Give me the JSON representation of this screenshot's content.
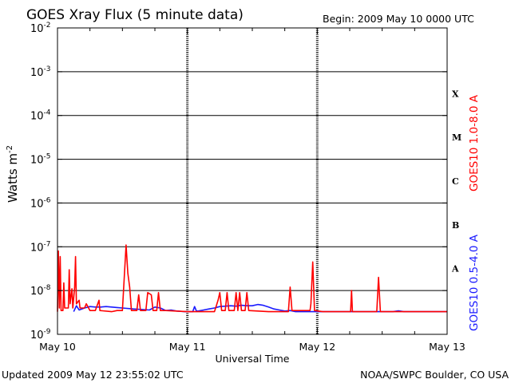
{
  "title": "GOES Xray Flux (5 minute data)",
  "begin_label": "Begin:  2009 May 10 0000 UTC",
  "footer_left": "Updated 2009 May 12 23:55:02 UTC",
  "footer_right": "NOAA/SWPC Boulder, CO USA",
  "colors": {
    "long_channel": "#ff0000",
    "short_channel": "#1a1aff",
    "axis": "#000000"
  },
  "chart_data": {
    "type": "line",
    "title": "GOES Xray Flux (5 minute data)",
    "xlabel": "Universal Time",
    "ylabel": "Watts m",
    "ylabel_superscript": "-2",
    "y_scale": "log",
    "ylim": [
      1e-09,
      0.01
    ],
    "xlim": [
      "2009-05-10 00:00",
      "2009-05-13 00:00"
    ],
    "y_ticks": [
      {
        "value": 0.01,
        "base": "10",
        "exp": "-2"
      },
      {
        "value": 0.001,
        "base": "10",
        "exp": "-3"
      },
      {
        "value": 0.0001,
        "base": "10",
        "exp": "-4"
      },
      {
        "value": 1e-05,
        "base": "10",
        "exp": "-5"
      },
      {
        "value": 1e-06,
        "base": "10",
        "exp": "-6"
      },
      {
        "value": 1e-07,
        "base": "10",
        "exp": "-7"
      },
      {
        "value": 1e-08,
        "base": "10",
        "exp": "-8"
      },
      {
        "value": 1e-09,
        "base": "10",
        "exp": "-9"
      }
    ],
    "x_ticks": [
      {
        "label": "May 10",
        "x": "2009-05-10 00:00"
      },
      {
        "label": "May 11",
        "x": "2009-05-11 00:00"
      },
      {
        "label": "May 12",
        "x": "2009-05-12 00:00"
      },
      {
        "label": "May 13",
        "x": "2009-05-13 00:00"
      }
    ],
    "horizontal_grid": [
      0.001,
      0.0001,
      1e-05,
      1e-06,
      1e-07,
      1e-08
    ],
    "flare_classes": [
      {
        "label": "X",
        "low": 0.0001,
        "high": 0.001
      },
      {
        "label": "M",
        "low": 1e-05,
        "high": 0.0001
      },
      {
        "label": "C",
        "low": 1e-06,
        "high": 1e-05
      },
      {
        "label": "B",
        "low": 1e-07,
        "high": 1e-06
      },
      {
        "label": "A",
        "low": 1e-08,
        "high": 1e-07
      }
    ],
    "legend_placement": "right, vertical",
    "series": [
      {
        "name": "GOES10 1.0-8.0 A",
        "color": "#ff0000",
        "points": [
          [
            "2009-05-10 00:00",
            3.3e-09
          ],
          [
            "2009-05-10 00:10",
            8e-08
          ],
          [
            "2009-05-10 00:20",
            4e-09
          ],
          [
            "2009-05-10 00:30",
            6e-08
          ],
          [
            "2009-05-10 00:40",
            3.5e-09
          ],
          [
            "2009-05-10 01:00",
            3.5e-09
          ],
          [
            "2009-05-10 01:10",
            1.5e-08
          ],
          [
            "2009-05-10 01:20",
            4e-09
          ],
          [
            "2009-05-10 02:00",
            4e-09
          ],
          [
            "2009-05-10 02:10",
            3e-08
          ],
          [
            "2009-05-10 02:20",
            5e-09
          ],
          [
            "2009-05-10 02:40",
            1.1e-08
          ],
          [
            "2009-05-10 02:50",
            4e-09
          ],
          [
            "2009-05-10 03:10",
            1.2e-08
          ],
          [
            "2009-05-10 03:20",
            6e-08
          ],
          [
            "2009-05-10 03:30",
            5e-09
          ],
          [
            "2009-05-10 04:00",
            6e-09
          ],
          [
            "2009-05-10 04:10",
            4e-09
          ],
          [
            "2009-05-10 05:00",
            4e-09
          ],
          [
            "2009-05-10 05:20",
            5e-09
          ],
          [
            "2009-05-10 06:00",
            3.5e-09
          ],
          [
            "2009-05-10 07:00",
            3.5e-09
          ],
          [
            "2009-05-10 07:40",
            6e-09
          ],
          [
            "2009-05-10 07:50",
            3.5e-09
          ],
          [
            "2009-05-10 10:00",
            3.3e-09
          ],
          [
            "2009-05-10 11:00",
            3.5e-09
          ],
          [
            "2009-05-10 12:00",
            3.5e-09
          ],
          [
            "2009-05-10 12:40",
            1.1e-07
          ],
          [
            "2009-05-10 13:00",
            2.5e-08
          ],
          [
            "2009-05-10 13:20",
            1.2e-08
          ],
          [
            "2009-05-10 13:40",
            3.5e-09
          ],
          [
            "2009-05-10 14:40",
            3.5e-09
          ],
          [
            "2009-05-10 15:00",
            8e-09
          ],
          [
            "2009-05-10 15:20",
            3.5e-09
          ],
          [
            "2009-05-10 16:20",
            3.5e-09
          ],
          [
            "2009-05-10 16:40",
            9e-09
          ],
          [
            "2009-05-10 17:20",
            8e-09
          ],
          [
            "2009-05-10 17:40",
            3.5e-09
          ],
          [
            "2009-05-10 18:20",
            3.5e-09
          ],
          [
            "2009-05-10 18:40",
            9e-09
          ],
          [
            "2009-05-10 19:00",
            3.5e-09
          ],
          [
            "2009-05-10 20:00",
            3.5e-09
          ],
          [
            "2009-05-11 00:00",
            3.3e-09
          ],
          [
            "2009-05-11 05:00",
            3.3e-09
          ],
          [
            "2009-05-11 05:40",
            6e-09
          ],
          [
            "2009-05-11 06:00",
            9e-09
          ],
          [
            "2009-05-11 06:20",
            3.5e-09
          ],
          [
            "2009-05-11 07:00",
            3.5e-09
          ],
          [
            "2009-05-11 07:20",
            9e-09
          ],
          [
            "2009-05-11 07:40",
            3.5e-09
          ],
          [
            "2009-05-11 08:40",
            3.5e-09
          ],
          [
            "2009-05-11 09:00",
            9e-09
          ],
          [
            "2009-05-11 09:20",
            3.5e-09
          ],
          [
            "2009-05-11 09:40",
            9e-09
          ],
          [
            "2009-05-11 10:00",
            3.5e-09
          ],
          [
            "2009-05-11 10:40",
            3.5e-09
          ],
          [
            "2009-05-11 11:00",
            9e-09
          ],
          [
            "2009-05-11 11:20",
            3.5e-09
          ],
          [
            "2009-05-11 15:00",
            3.3e-09
          ],
          [
            "2009-05-11 18:40",
            3.3e-09
          ],
          [
            "2009-05-11 19:00",
            1.2e-08
          ],
          [
            "2009-05-11 19:20",
            3.5e-09
          ],
          [
            "2009-05-11 22:40",
            3.5e-09
          ],
          [
            "2009-05-11 22:50",
            5e-09
          ],
          [
            "2009-05-11 23:10",
            4.5e-08
          ],
          [
            "2009-05-11 23:30",
            3.5e-09
          ],
          [
            "2009-05-12 01:00",
            3.3e-09
          ],
          [
            "2009-05-12 06:10",
            3.3e-09
          ],
          [
            "2009-05-12 06:20",
            1e-08
          ],
          [
            "2009-05-12 06:30",
            3.3e-09
          ],
          [
            "2009-05-12 11:00",
            3.3e-09
          ],
          [
            "2009-05-12 11:20",
            2e-08
          ],
          [
            "2009-05-12 11:40",
            3.3e-09
          ],
          [
            "2009-05-13 00:00",
            3.3e-09
          ]
        ]
      },
      {
        "name": "GOES10 0.5-4.0 A",
        "color": "#1a1aff",
        "points": [
          [
            "2009-05-10 03:00",
            3.3e-09
          ],
          [
            "2009-05-10 03:30",
            4.5e-09
          ],
          [
            "2009-05-10 04:00",
            3.6e-09
          ],
          [
            "2009-05-10 05:00",
            4e-09
          ],
          [
            "2009-05-10 06:00",
            4.3e-09
          ],
          [
            "2009-05-10 07:00",
            4.2e-09
          ],
          [
            "2009-05-10 08:00",
            4.2e-09
          ],
          [
            "2009-05-10 09:00",
            4.3e-09
          ],
          [
            "2009-05-10 10:00",
            4.2e-09
          ],
          [
            "2009-05-10 11:00",
            4.1e-09
          ],
          [
            "2009-05-10 12:00",
            4e-09
          ],
          [
            "2009-05-10 14:00",
            3.8e-09
          ],
          [
            "2009-05-10 17:00",
            3.6e-09
          ],
          [
            "2009-05-10 18:00",
            4.2e-09
          ],
          [
            "2009-05-10 19:00",
            4e-09
          ],
          [
            "2009-05-10 20:00",
            3.5e-09
          ],
          [
            "2009-05-10 21:00",
            3.6e-09
          ],
          [
            "2009-05-10 22:00",
            3.4e-09
          ],
          [
            "2009-05-10 23:30",
            3.3e-09
          ],
          [
            "2009-05-11 01:00",
            3.3e-09
          ],
          [
            "2009-05-11 01:20",
            4.3e-09
          ],
          [
            "2009-05-11 01:40",
            3.4e-09
          ],
          [
            "2009-05-11 02:00",
            3.4e-09
          ],
          [
            "2009-05-11 03:00",
            3.6e-09
          ],
          [
            "2009-05-11 04:00",
            3.8e-09
          ],
          [
            "2009-05-11 05:00",
            4e-09
          ],
          [
            "2009-05-11 06:00",
            4.3e-09
          ],
          [
            "2009-05-11 07:00",
            4.4e-09
          ],
          [
            "2009-05-11 08:00",
            4.5e-09
          ],
          [
            "2009-05-11 09:00",
            4.4e-09
          ],
          [
            "2009-05-11 10:00",
            4.6e-09
          ],
          [
            "2009-05-11 11:00",
            4.5e-09
          ],
          [
            "2009-05-11 12:00",
            4.5e-09
          ],
          [
            "2009-05-11 13:00",
            4.8e-09
          ],
          [
            "2009-05-11 14:00",
            4.6e-09
          ],
          [
            "2009-05-11 15:00",
            4.2e-09
          ],
          [
            "2009-05-11 16:00",
            3.8e-09
          ],
          [
            "2009-05-11 17:00",
            3.6e-09
          ],
          [
            "2009-05-11 18:00",
            3.4e-09
          ],
          [
            "2009-05-11 19:00",
            3.5e-09
          ],
          [
            "2009-05-11 20:00",
            3.3e-09
          ],
          [
            "2009-05-12 06:00",
            3.3e-09
          ],
          [
            "2009-05-12 14:00",
            3.3e-09
          ],
          [
            "2009-05-12 15:00",
            3.45e-09
          ],
          [
            "2009-05-12 16:00",
            3.3e-09
          ],
          [
            "2009-05-13 00:00",
            3.3e-09
          ]
        ]
      }
    ]
  }
}
